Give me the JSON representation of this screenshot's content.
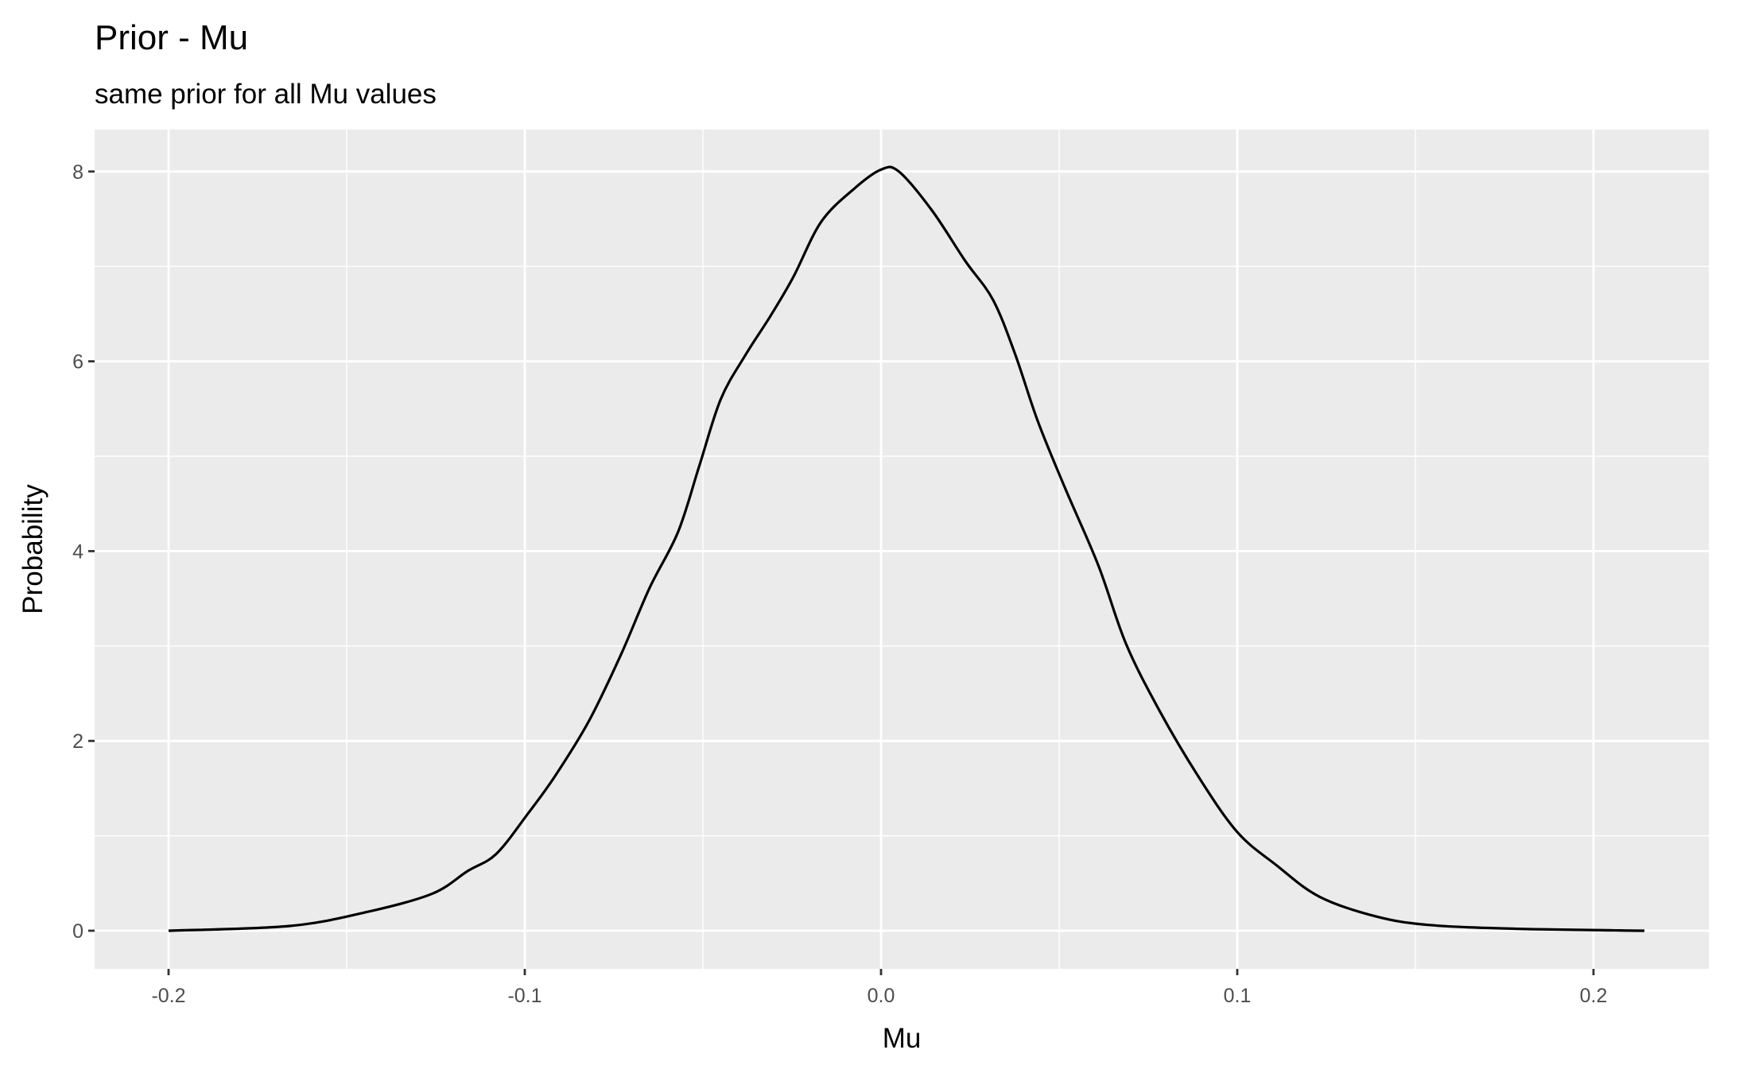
{
  "chart_data": {
    "type": "line",
    "title": "Prior - Mu",
    "subtitle": "same prior for all Mu values",
    "xlabel": "Mu",
    "ylabel": "Probability",
    "xlim": [
      -0.22,
      0.235
    ],
    "ylim": [
      -0.4,
      8.4
    ],
    "xticks": [
      -0.2,
      -0.1,
      0.0,
      0.1,
      0.2
    ],
    "xtick_labels": [
      "-0.2",
      "-0.1",
      "0.0",
      "0.1",
      "0.2"
    ],
    "yticks": [
      0,
      2,
      4,
      6,
      8
    ],
    "ytick_labels": [
      "0",
      "2",
      "4",
      "6",
      "8"
    ],
    "grid": true,
    "background": "#ebebeb",
    "line_color": "#000000",
    "series": [
      {
        "x": [
          -0.2,
          -0.166,
          -0.144,
          -0.126,
          -0.116,
          -0.108,
          -0.099,
          -0.0915,
          -0.082,
          -0.073,
          -0.065,
          -0.057,
          -0.051,
          -0.045,
          -0.038,
          -0.031,
          -0.0246,
          -0.0168,
          -0.0075,
          0.0,
          0.005,
          0.0143,
          0.0236,
          0.0314,
          0.0376,
          0.044,
          0.0516,
          0.061,
          0.0687,
          0.078,
          0.089,
          0.1,
          0.111,
          0.123,
          0.139,
          0.154,
          0.179,
          0.2143
        ],
        "y": [
          0.0,
          0.05,
          0.2,
          0.39,
          0.63,
          0.81,
          1.24,
          1.63,
          2.21,
          2.91,
          3.61,
          4.2,
          4.9,
          5.6,
          6.07,
          6.48,
          6.89,
          7.47,
          7.82,
          8.02,
          8.0,
          7.59,
          7.06,
          6.65,
          6.08,
          5.37,
          4.67,
          3.85,
          3.03,
          2.33,
          1.63,
          1.04,
          0.69,
          0.36,
          0.15,
          0.06,
          0.02,
          0.0
        ]
      }
    ]
  }
}
